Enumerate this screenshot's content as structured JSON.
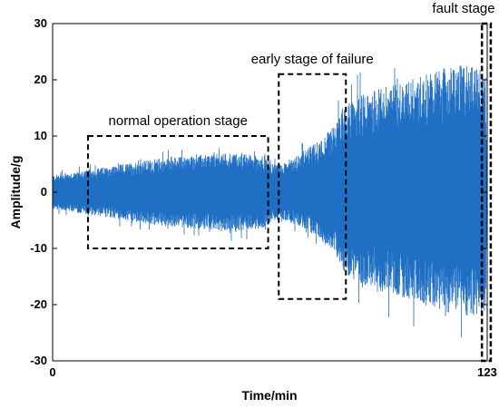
{
  "chart_data": {
    "type": "line",
    "xlabel": "Time/min",
    "ylabel": "Amplitude/g",
    "xlim": [
      0,
      123
    ],
    "ylim": [
      -30,
      30
    ],
    "x_ticks": [
      "0",
      "123"
    ],
    "y_ticks": [
      "30",
      "20",
      "10",
      "0",
      "-10",
      "-20",
      "-30"
    ],
    "series_color": "#1f6fc5",
    "series": [
      {
        "x": [
          0,
          5,
          10,
          20,
          30,
          40,
          50,
          60,
          62,
          65,
          70,
          75,
          80,
          82,
          84,
          86,
          90,
          95,
          100,
          105,
          110,
          115,
          118,
          120,
          122.5,
          123
        ],
        "upper": [
          3,
          3.5,
          4,
          5,
          6,
          6.5,
          7,
          6.5,
          5,
          5,
          7,
          9,
          12,
          15,
          16,
          17,
          18,
          19,
          20,
          21,
          22,
          22.5,
          23,
          22,
          22,
          5
        ],
        "lower": [
          -3,
          -3.5,
          -4,
          -5,
          -6,
          -6.5,
          -7,
          -6.5,
          -5,
          -5,
          -6,
          -8,
          -11,
          -14,
          -15,
          -16,
          -17,
          -18,
          -19,
          -20,
          -21,
          -22,
          -22,
          -22,
          -22,
          -5
        ]
      }
    ],
    "annotations": [
      {
        "label": "normal operation stage",
        "x_range": [
          10,
          61
        ],
        "y_range": [
          -10,
          10
        ]
      },
      {
        "label": "early stage of failure",
        "x_range": [
          64,
          83
        ],
        "y_range": [
          -19,
          21
        ]
      },
      {
        "label": "fault stage",
        "x_range": [
          121.5,
          124
        ],
        "y_range": [
          -30,
          30
        ]
      }
    ]
  }
}
